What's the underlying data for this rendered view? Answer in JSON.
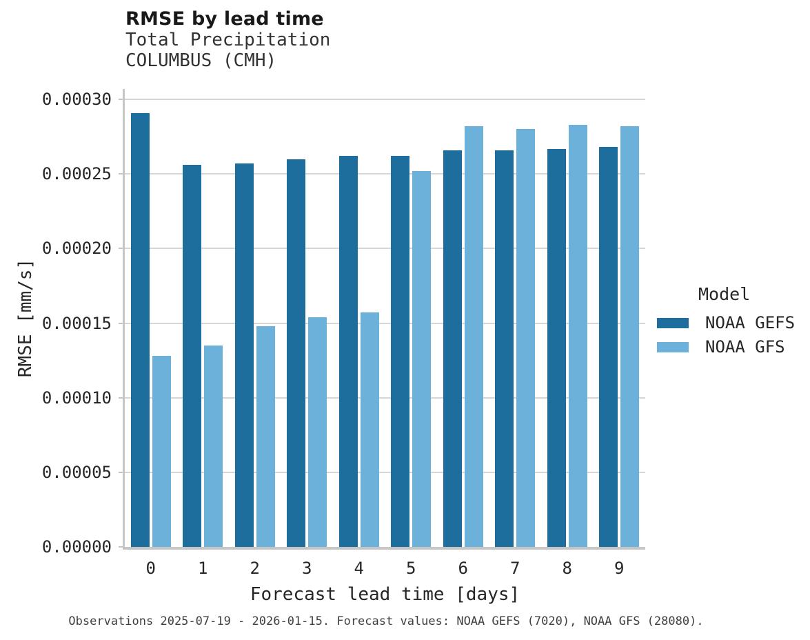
{
  "header": {
    "title": "RMSE by lead time",
    "subtitle_line1": "Total Precipitation",
    "subtitle_line2": "COLUMBUS (CMH)"
  },
  "chart_data": {
    "type": "bar",
    "title": "RMSE by lead time",
    "subtitle_lines": [
      "Total Precipitation",
      "COLUMBUS (CMH)"
    ],
    "categories": [
      "0",
      "1",
      "2",
      "3",
      "4",
      "5",
      "6",
      "7",
      "8",
      "9"
    ],
    "series": [
      {
        "name": "NOAA GEFS",
        "color": "#1e6e9d",
        "values": [
          0.000291,
          0.000256,
          0.000257,
          0.00026,
          0.000262,
          0.000262,
          0.000266,
          0.000266,
          0.000267,
          0.000268
        ]
      },
      {
        "name": "NOAA GFS",
        "color": "#6bb1d9",
        "values": [
          0.000128,
          0.000135,
          0.000148,
          0.000154,
          0.000157,
          0.000252,
          0.000282,
          0.00028,
          0.000283,
          0.000282
        ]
      }
    ],
    "xlabel": "Forecast lead time [days]",
    "ylabel": "RMSE [mm/s]",
    "ylim": [
      0,
      0.000307
    ],
    "yticks": [
      0,
      5e-05,
      0.0001,
      0.00015,
      0.0002,
      0.00025,
      0.0003
    ],
    "ytick_labels": [
      "0.00000",
      "0.00005",
      "0.00010",
      "0.00015",
      "0.00020",
      "0.00025",
      "0.00030"
    ],
    "grid": true,
    "legend_title": "Model",
    "legend_position": "right",
    "colors": {
      "gridline": "#d6d6d6",
      "axis_line": "#c6c6c6",
      "text": "#262626",
      "background": "#ffffff"
    }
  },
  "caption": "Observations 2025-07-19 - 2026-01-15. Forecast values: NOAA GEFS (7020), NOAA GFS (28080)."
}
